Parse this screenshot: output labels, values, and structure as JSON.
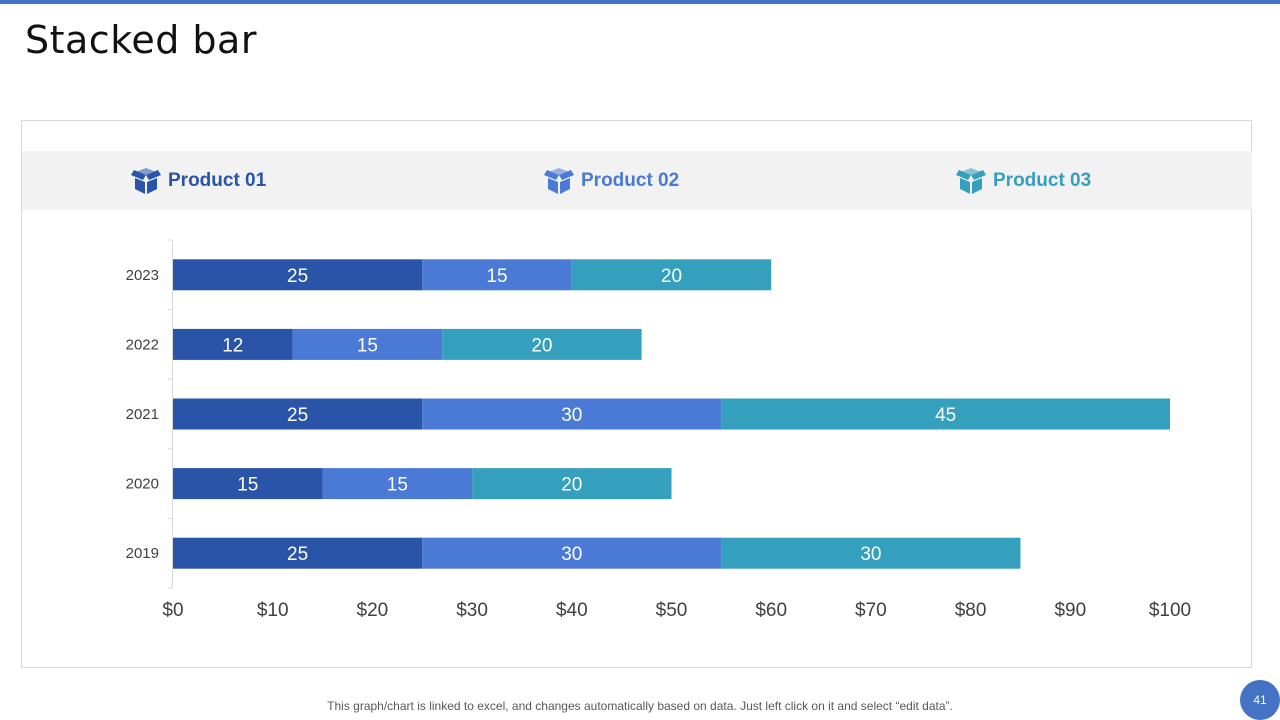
{
  "slide": {
    "title": "Stacked bar",
    "footer_note": "This graph/chart is linked to excel, and changes automatically based on data. Just left click on it and select “edit data”.",
    "page_number": "41"
  },
  "legend": [
    {
      "label": "Product 01",
      "color": "#2a54a8",
      "icon": "box-icon"
    },
    {
      "label": "Product 02",
      "color": "#4a7ad6",
      "icon": "box-icon"
    },
    {
      "label": "Product 03",
      "color": "#34a0bd",
      "icon": "box-icon"
    }
  ],
  "chart_data": {
    "type": "bar",
    "orientation": "horizontal",
    "stacked": true,
    "categories": [
      "2023",
      "2022",
      "2021",
      "2020",
      "2019"
    ],
    "series": [
      {
        "name": "Product 01",
        "color": "#2a54a8",
        "values": [
          25,
          12,
          25,
          15,
          25
        ]
      },
      {
        "name": "Product 02",
        "color": "#4a7ad6",
        "values": [
          15,
          15,
          30,
          15,
          30
        ]
      },
      {
        "name": "Product 03",
        "color": "#34a0bd",
        "values": [
          20,
          20,
          45,
          20,
          30
        ]
      }
    ],
    "x_ticks": [
      "$0",
      "$10",
      "$20",
      "$30",
      "$40",
      "$50",
      "$60",
      "$70",
      "$80",
      "$90",
      "$100"
    ],
    "xlim": [
      0,
      100
    ],
    "grid": false,
    "data_labels": true,
    "legend_position": "top"
  }
}
